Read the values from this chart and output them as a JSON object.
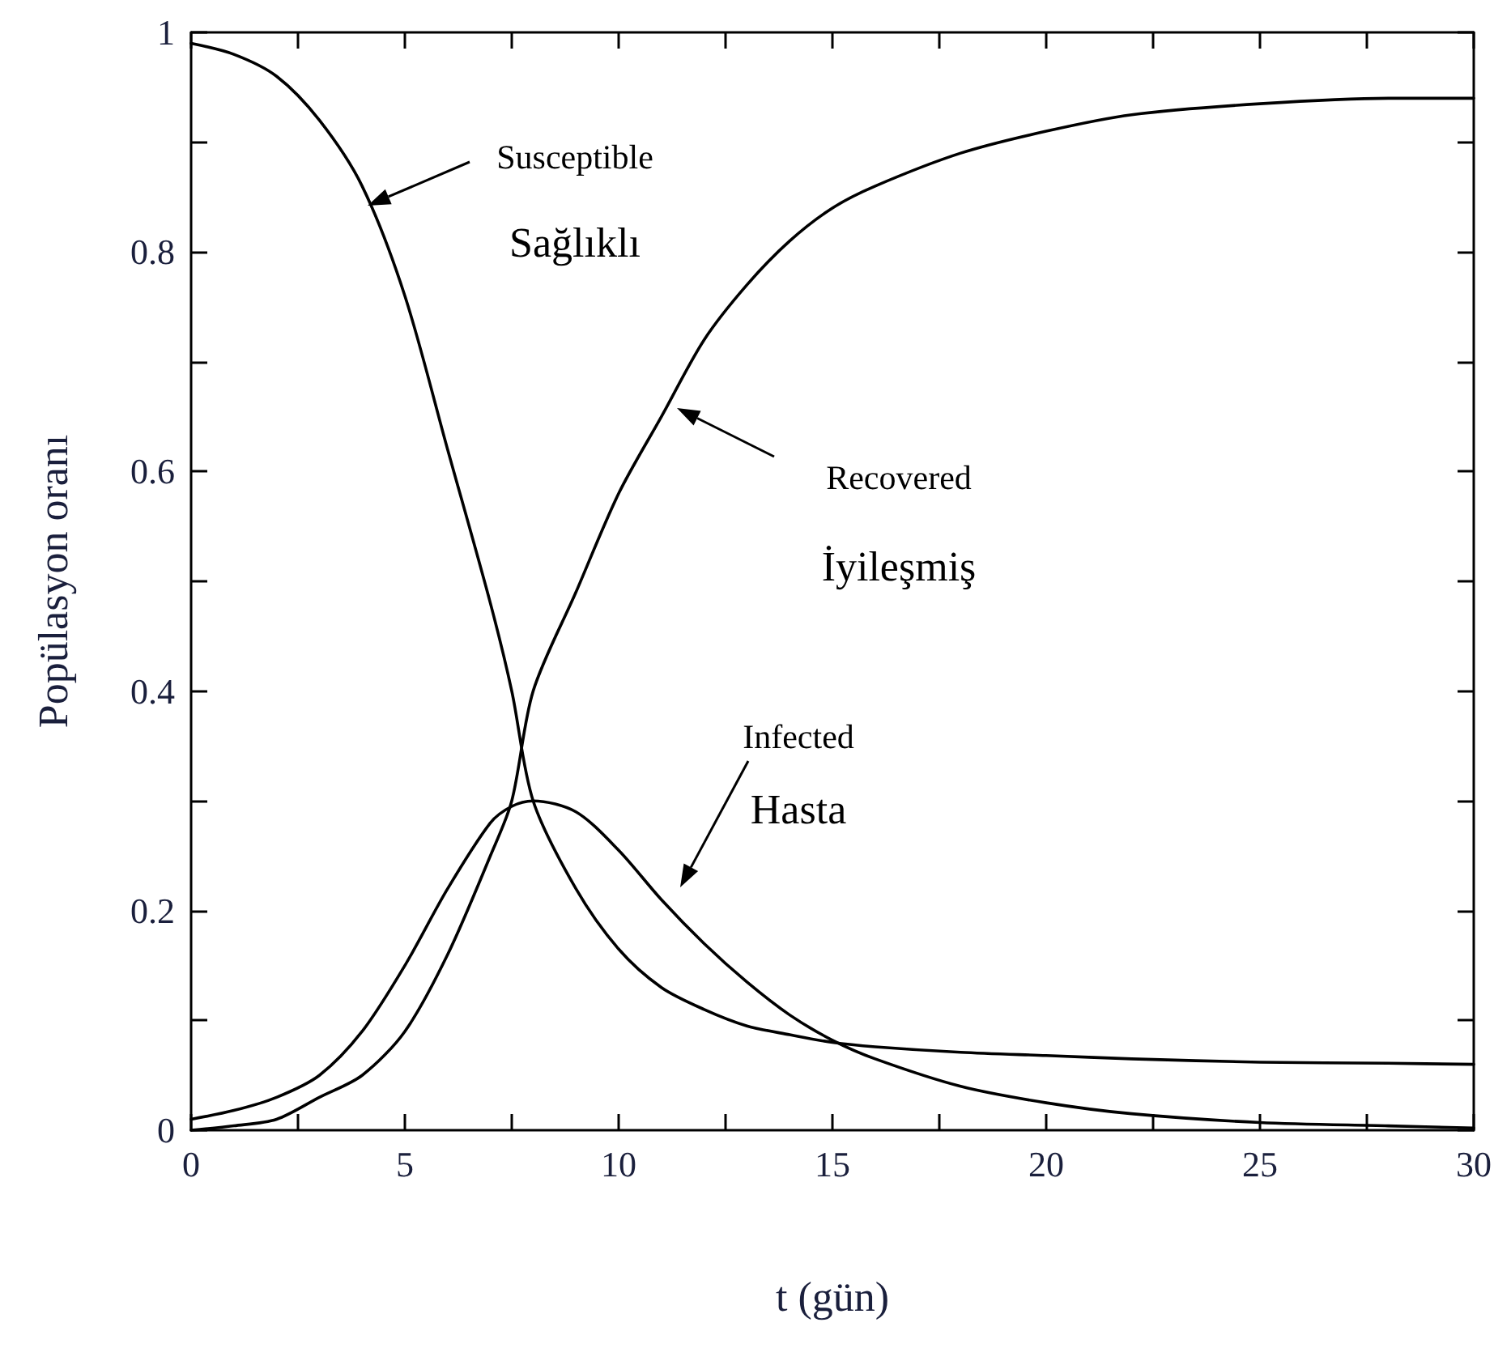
{
  "chart_data": {
    "type": "line",
    "xlabel": "t (gün)",
    "ylabel": "Popülasyon oranı",
    "xlim": [
      0,
      30
    ],
    "ylim": [
      0,
      1
    ],
    "xticks": [
      0,
      {
        "value": 2.5,
        "label": null
      },
      5,
      {
        "value": 7.5,
        "label": null
      },
      10,
      {
        "value": 12.5,
        "label": null
      },
      15,
      {
        "value": 17.5,
        "label": null
      },
      20,
      {
        "value": 22.5,
        "label": null
      },
      25,
      {
        "value": 27.5,
        "label": null
      },
      30
    ],
    "yticks": [
      0,
      {
        "value": 0.1,
        "label": null
      },
      0.2,
      {
        "value": 0.3,
        "label": null
      },
      0.4,
      {
        "value": 0.5,
        "label": null
      },
      0.6,
      {
        "value": 0.7,
        "label": null
      },
      0.8,
      {
        "value": 0.9,
        "label": null
      },
      1
    ],
    "grid": false,
    "marker": "none",
    "line_style": "solid",
    "x": [
      0,
      1,
      2,
      3,
      4,
      5,
      6,
      7,
      7.5,
      8,
      9,
      10,
      11,
      12,
      13,
      14,
      15,
      16,
      18,
      20,
      22,
      25,
      28,
      30
    ],
    "series": [
      {
        "color": "#000000",
        "values": [
          0.99,
          0.98,
          0.96,
          0.92,
          0.86,
          0.76,
          0.62,
          0.48,
          0.4,
          0.3,
          0.22,
          0.165,
          0.13,
          0.11,
          0.095,
          0.087,
          0.08,
          0.076,
          0.071,
          0.068,
          0.065,
          0.062,
          0.061,
          0.06
        ]
      },
      {
        "color": "#000000",
        "values": [
          0.01,
          0.018,
          0.03,
          0.05,
          0.09,
          0.15,
          0.22,
          0.28,
          0.295,
          0.3,
          0.29,
          0.255,
          0.21,
          0.17,
          0.135,
          0.105,
          0.082,
          0.065,
          0.04,
          0.025,
          0.015,
          0.007,
          0.004,
          0.002
        ]
      },
      {
        "color": "#000000",
        "values": [
          0,
          0.004,
          0.01,
          0.03,
          0.05,
          0.09,
          0.16,
          0.25,
          0.3,
          0.4,
          0.49,
          0.58,
          0.65,
          0.72,
          0.77,
          0.81,
          0.84,
          0.86,
          0.89,
          0.91,
          0.925,
          0.935,
          0.94,
          0.94
        ]
      }
    ],
    "annotations": [
      "Susceptible\nSağlıklı",
      "Recovered\nİyileşmiş",
      "Infected\nHasta"
    ]
  }
}
